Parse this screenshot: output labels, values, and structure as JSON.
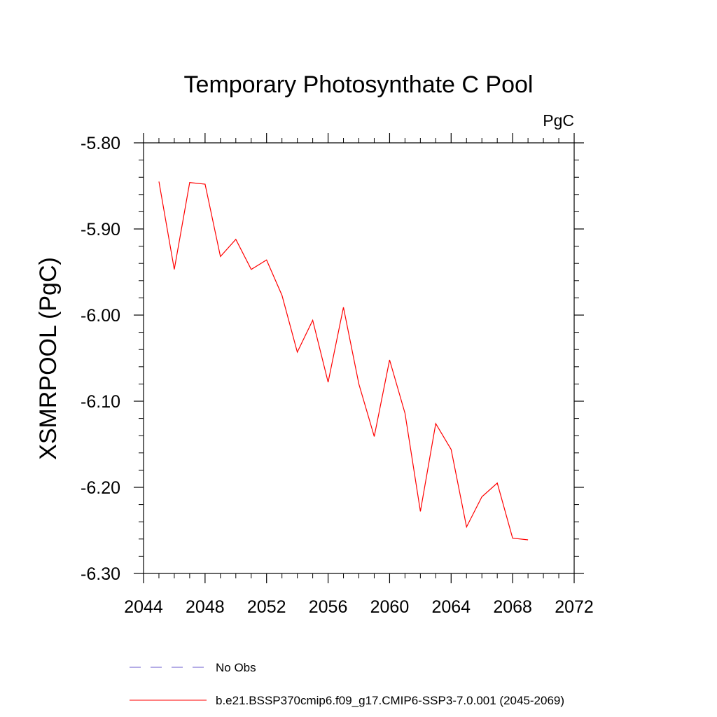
{
  "chart_data": {
    "type": "line",
    "title": "Temporary Photosynthate C Pool",
    "units_label": "PgC",
    "ylabel": "XSMRPOOL  (PgC)",
    "xlabel": "",
    "xlim": [
      2044,
      2072
    ],
    "ylim": [
      -6.3,
      -5.8
    ],
    "x_ticks": [
      2044,
      2048,
      2052,
      2056,
      2060,
      2064,
      2068,
      2072
    ],
    "x_tick_labels": [
      "2044",
      "2048",
      "2052",
      "2056",
      "2060",
      "2064",
      "2068",
      "2072"
    ],
    "y_ticks": [
      -5.8,
      -5.9,
      -6.0,
      -6.1,
      -6.2,
      -6.3
    ],
    "y_tick_labels": [
      "-5.80",
      "-5.90",
      "-6.00",
      "-6.10",
      "-6.20",
      "-6.30"
    ],
    "grid": false,
    "legend_position": "bottom",
    "series": [
      {
        "name": "b.e21.BSSP370cmip6.f09_g17.CMIP6-SSP3-7.0.001 (2045-2069)",
        "color": "#ff0000",
        "style": "solid",
        "x": [
          2045,
          2046,
          2047,
          2048,
          2049,
          2050,
          2051,
          2052,
          2053,
          2054,
          2055,
          2056,
          2057,
          2058,
          2059,
          2060,
          2061,
          2062,
          2063,
          2064,
          2065,
          2066,
          2067,
          2068,
          2069
        ],
        "values": [
          -5.845,
          -5.947,
          -5.846,
          -5.848,
          -5.932,
          -5.912,
          -5.947,
          -5.936,
          -5.977,
          -6.043,
          -6.006,
          -6.078,
          -5.991,
          -6.08,
          -6.141,
          -6.052,
          -6.114,
          -6.228,
          -6.126,
          -6.156,
          -6.246,
          -6.211,
          -6.195,
          -6.259,
          -6.261
        ]
      },
      {
        "name": "No Obs",
        "color": "#6a5acd",
        "style": "dashed",
        "x": [],
        "values": []
      }
    ],
    "legend": [
      {
        "label": "No Obs",
        "color": "#6a5acd",
        "style": "dashed"
      },
      {
        "label": "b.e21.BSSP370cmip6.f09_g17.CMIP6-SSP3-7.0.001 (2045-2069)",
        "color": "#ff0000",
        "style": "solid"
      }
    ]
  }
}
